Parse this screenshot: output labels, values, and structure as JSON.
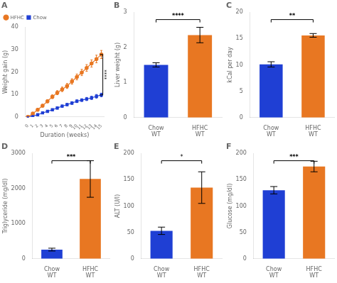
{
  "chart_data": [
    {
      "type": "line",
      "title": "A",
      "x": [
        0,
        1,
        2,
        3,
        4,
        5,
        6,
        7,
        8,
        9,
        10,
        11,
        12,
        13,
        14,
        15
      ],
      "series": [
        {
          "name": "HFHC",
          "color": "#E87722",
          "marker": "circle",
          "values": [
            0,
            1.5,
            3.2,
            5.0,
            7.0,
            9.0,
            10.8,
            12.3,
            13.8,
            15.8,
            17.8,
            19.8,
            21.8,
            23.8,
            25.8,
            27.8
          ],
          "errors": [
            0.1,
            0.3,
            0.5,
            0.6,
            0.7,
            0.8,
            0.9,
            1.0,
            1.1,
            1.2,
            1.3,
            1.4,
            1.5,
            1.6,
            1.7,
            1.8
          ]
        },
        {
          "name": "Chow",
          "color": "#1F3FD4",
          "marker": "square",
          "values": [
            0,
            0.5,
            1.0,
            1.8,
            2.5,
            3.2,
            4.0,
            4.8,
            5.5,
            6.2,
            7.0,
            7.5,
            8.0,
            8.5,
            9.2,
            9.8
          ],
          "errors": [
            0.1,
            0.2,
            0.3,
            0.3,
            0.4,
            0.4,
            0.5,
            0.5,
            0.5,
            0.6,
            0.6,
            0.6,
            0.7,
            0.7,
            0.8,
            0.8
          ]
        }
      ],
      "xlabel": "Duration (weeks)",
      "ylabel": "Weight gain (g)",
      "xlim": [
        -0.5,
        15.5
      ],
      "xticks": [
        0,
        1,
        2,
        3,
        4,
        5,
        6,
        7,
        8,
        9,
        10,
        11,
        12,
        13,
        14,
        15
      ],
      "ylim": [
        0,
        40
      ],
      "yticks": [
        0,
        10,
        20,
        30,
        40
      ],
      "legend": "upper left",
      "grid": false,
      "annotations": [
        {
          "text": "****",
          "x": 15.3,
          "y": [
            9.8,
            27.8
          ]
        }
      ]
    },
    {
      "type": "bar",
      "title": "B",
      "categories": [
        "Chow\nWT",
        "HFHC\nWT"
      ],
      "values": [
        1.5,
        2.35
      ],
      "errors": [
        0.06,
        0.22
      ],
      "colors": [
        "#1F3FD4",
        "#E87722"
      ],
      "ylabel": "Liver weight (g)",
      "ylim": [
        0,
        3
      ],
      "yticks": [
        0,
        1,
        2,
        3
      ],
      "grid": false,
      "annotations": [
        {
          "text": "****",
          "y": 2.79
        }
      ]
    },
    {
      "type": "bar",
      "title": "C",
      "categories": [
        "Chow\nWT",
        "HFHC\nWT"
      ],
      "values": [
        10.1,
        15.6
      ],
      "errors": [
        0.5,
        0.35
      ],
      "colors": [
        "#1F3FD4",
        "#E87722"
      ],
      "ylabel": "kCal per day",
      "ylim": [
        0,
        20
      ],
      "yticks": [
        0,
        5,
        10,
        15,
        20
      ],
      "grid": false,
      "annotations": [
        {
          "text": "**",
          "y": 18.6
        }
      ]
    },
    {
      "type": "bar",
      "title": "D",
      "categories": [
        "Chow\nWT",
        "HFHC\nWT"
      ],
      "values": [
        260,
        2270
      ],
      "errors": [
        40,
        520
      ],
      "colors": [
        "#1F3FD4",
        "#E87722"
      ],
      "ylabel": "Triglyceride (mg/dl)",
      "ylim": [
        0,
        3000
      ],
      "yticks": [
        0,
        1000,
        2000,
        3000
      ],
      "grid": false,
      "annotations": [
        {
          "text": "***",
          "y": 2790
        }
      ]
    },
    {
      "type": "bar",
      "title": "E",
      "categories": [
        "Chow\nWT",
        "HFHC\nWT"
      ],
      "values": [
        53,
        135
      ],
      "errors": [
        7,
        30
      ],
      "colors": [
        "#1F3FD4",
        "#E87722"
      ],
      "ylabel": "ALT (U/l)",
      "ylim": [
        0,
        200
      ],
      "yticks": [
        0,
        50,
        100,
        150,
        200
      ],
      "grid": false,
      "annotations": [
        {
          "text": "*",
          "y": 186
        }
      ]
    },
    {
      "type": "bar",
      "title": "F",
      "categories": [
        "Chow\nWT",
        "HFHC\nWT"
      ],
      "values": [
        130,
        175
      ],
      "errors": [
        7,
        10
      ],
      "colors": [
        "#1F3FD4",
        "#E87722"
      ],
      "ylabel": "Glucose (mg/dl)",
      "ylim": [
        0,
        200
      ],
      "yticks": [
        0,
        50,
        100,
        150,
        200
      ],
      "grid": false,
      "annotations": [
        {
          "text": "***",
          "y": 186
        }
      ]
    }
  ]
}
